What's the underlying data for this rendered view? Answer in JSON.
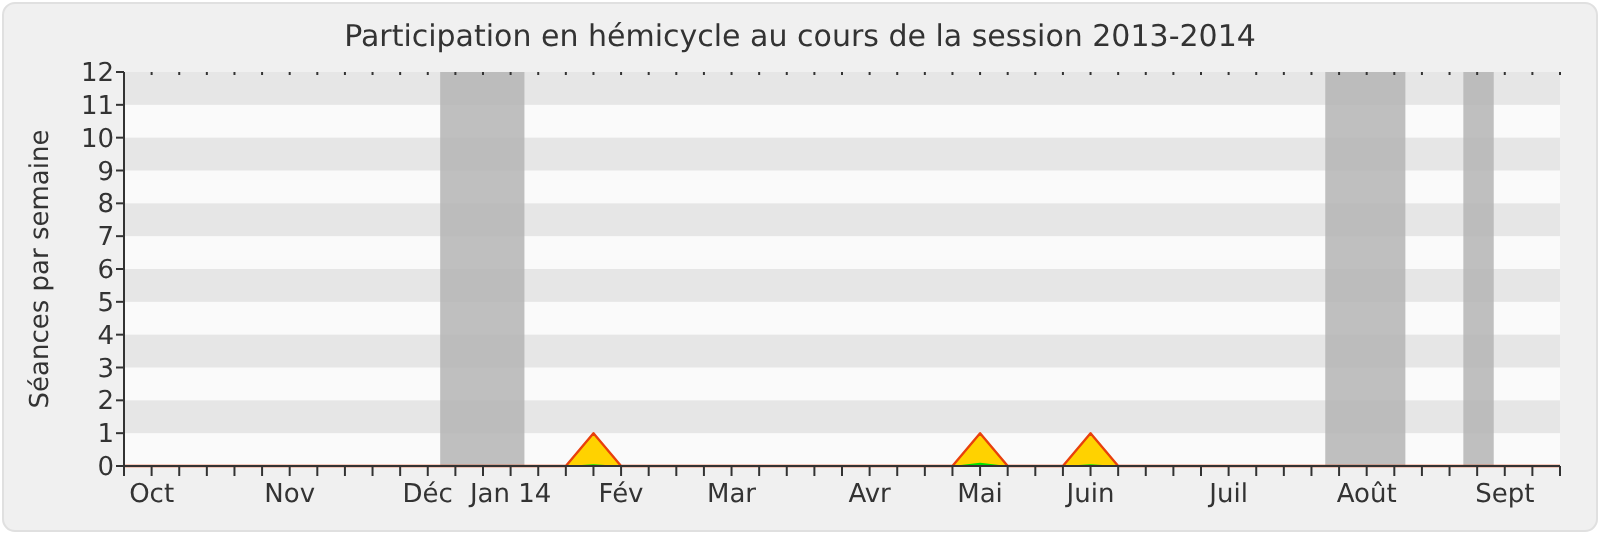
{
  "chart_data": {
    "type": "area",
    "title": "Participation en hémicycle au cours de la session 2013-2014",
    "ylabel": "Séances par semaine",
    "categories": [
      null,
      "Oct",
      null,
      null,
      null,
      null,
      "Nov",
      null,
      null,
      null,
      null,
      "Déc",
      null,
      null,
      "Jan 14",
      null,
      null,
      null,
      "Fév",
      null,
      null,
      null,
      "Mar",
      null,
      null,
      null,
      null,
      "Avr",
      null,
      null,
      null,
      "Mai",
      null,
      null,
      null,
      "Juin",
      null,
      null,
      null,
      null,
      "Juil",
      null,
      null,
      null,
      null,
      "Août",
      null,
      null,
      null,
      null,
      "Sept",
      null,
      null
    ],
    "series": [
      {
        "color": "#ffd200",
        "values": [
          0,
          0,
          0,
          0,
          0,
          0,
          0,
          0,
          0,
          0,
          0,
          0,
          0,
          0,
          0,
          0,
          0,
          1,
          0,
          0,
          0,
          0,
          0,
          0,
          0,
          0,
          0,
          0,
          0,
          0,
          0,
          1,
          0,
          0,
          0,
          1,
          0,
          0,
          0,
          0,
          0,
          0,
          0,
          0,
          0,
          0,
          0,
          0,
          0,
          0,
          0,
          0,
          0
        ]
      },
      {
        "color": "#00e000",
        "values": [
          0,
          0,
          0,
          0,
          0,
          0,
          0,
          0,
          0,
          0,
          0,
          0,
          0,
          0,
          0,
          0,
          0,
          0.05,
          0,
          0,
          0,
          0,
          0,
          0,
          0,
          0,
          0,
          0,
          0,
          0,
          0,
          0.1,
          0,
          0,
          0,
          0.05,
          0,
          0,
          0,
          0,
          0,
          0,
          0,
          0,
          0,
          0,
          0,
          0,
          0,
          0,
          0,
          0,
          0
        ]
      }
    ],
    "ylim": [
      0,
      12
    ],
    "yticks": [
      0,
      1,
      2,
      3,
      4,
      5,
      6,
      7,
      8,
      9,
      10,
      11,
      12
    ]
  }
}
